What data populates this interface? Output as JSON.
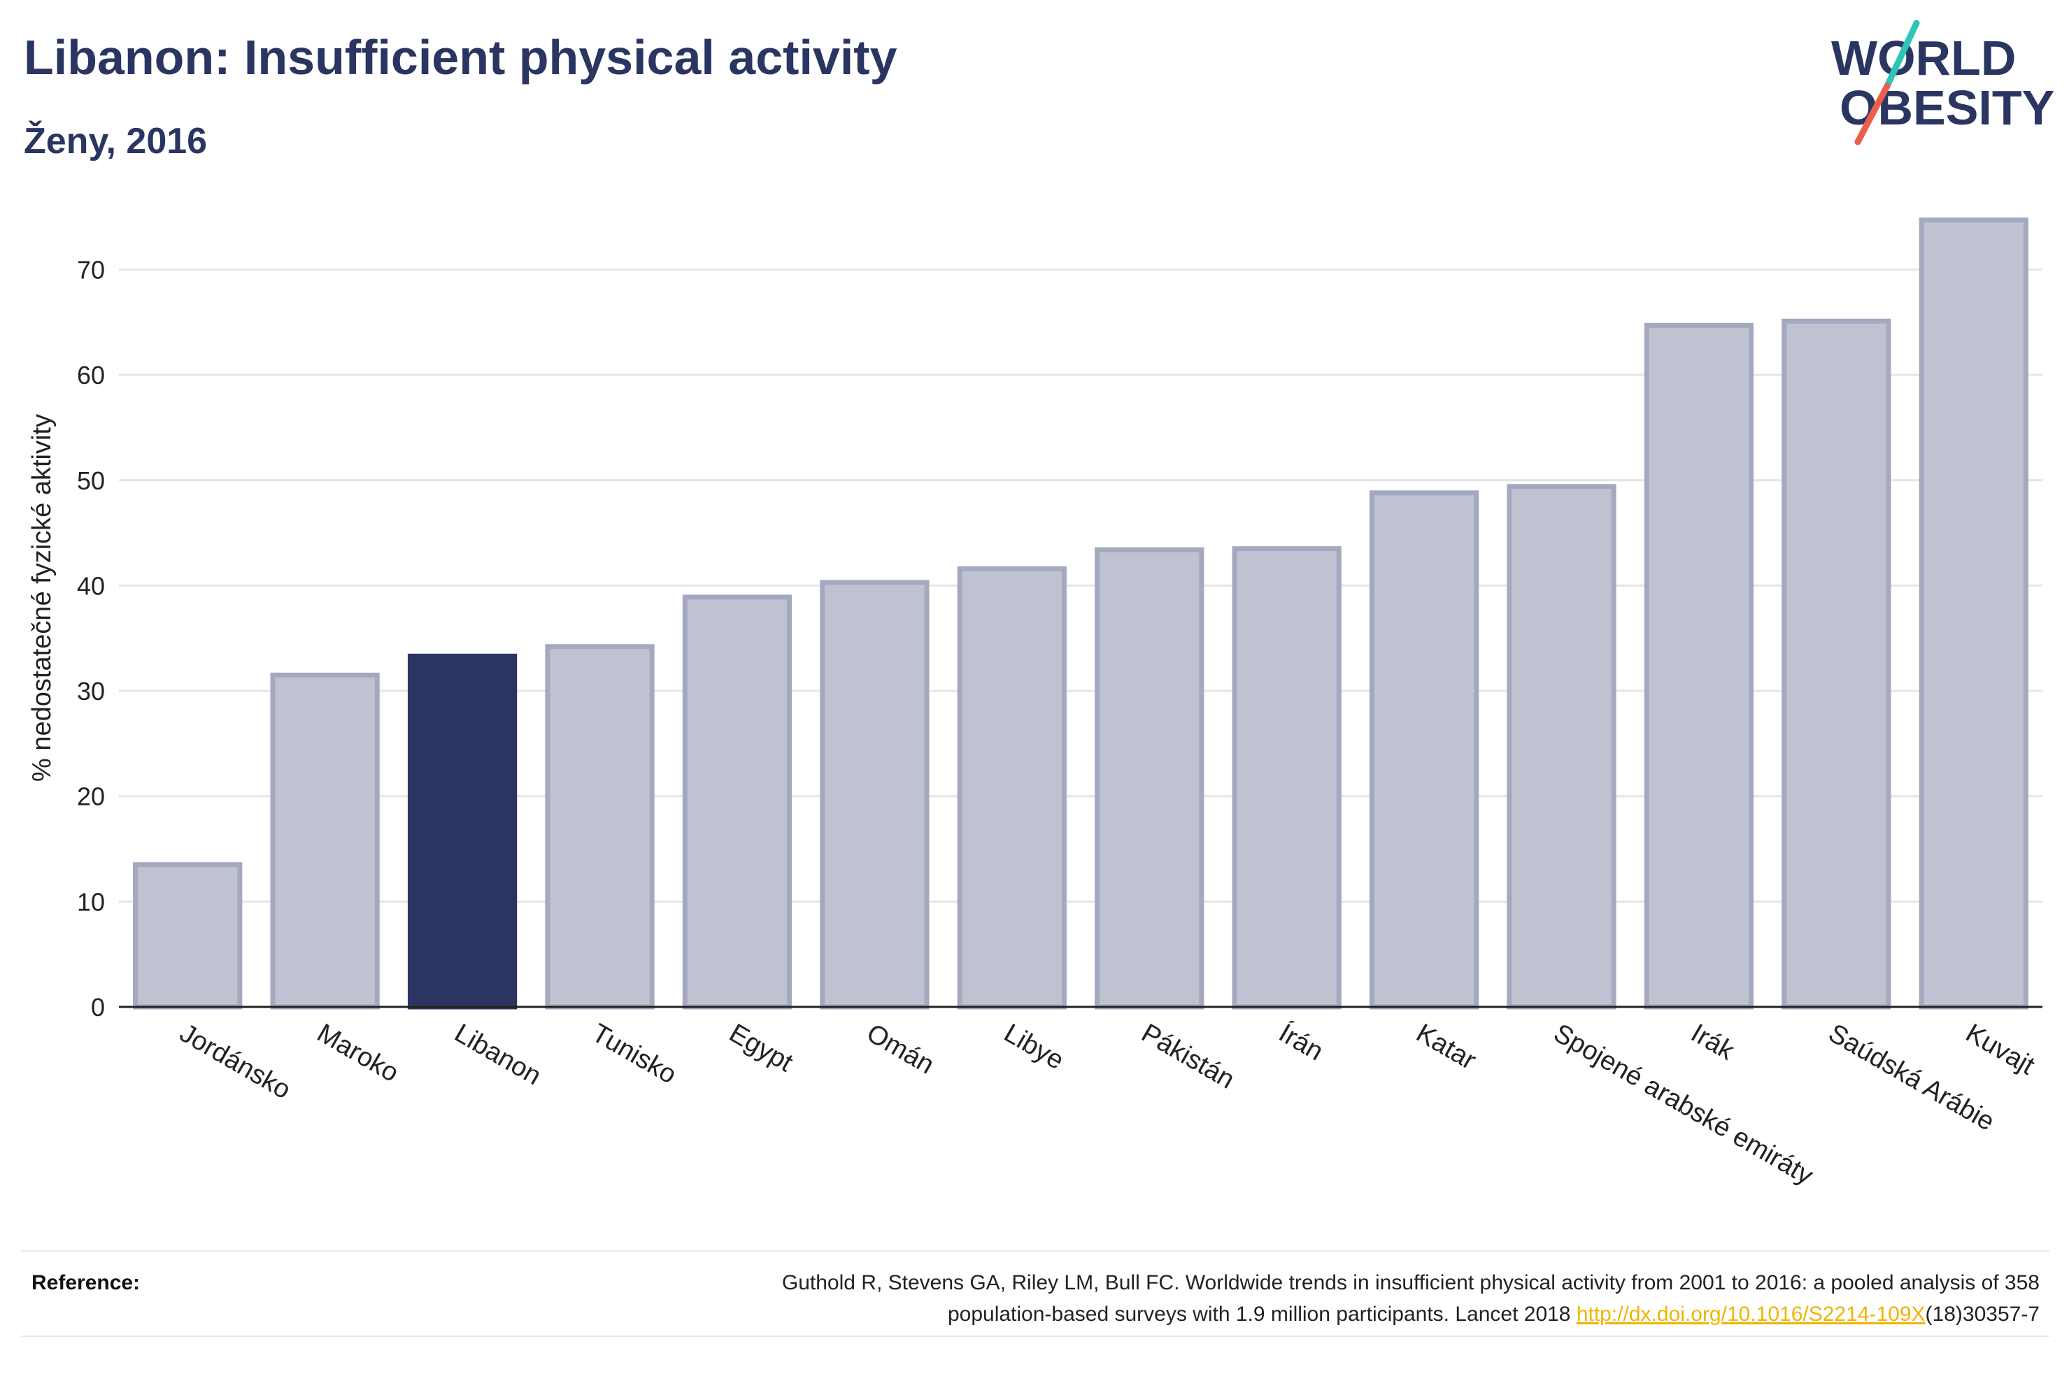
{
  "header": {
    "title": "Libanon: Insufficient physical activity",
    "subtitle": "Ženy, 2016"
  },
  "logo": {
    "line1": "WORLD",
    "line2": "OBESITY",
    "colors": {
      "text": "#2b3561",
      "slash_top": "#2ec4b6",
      "slash_bottom": "#e8604c"
    }
  },
  "chart_data": {
    "type": "bar",
    "ylabel": "% nedostatečné fyzické aktivity",
    "ylim": [
      0,
      77
    ],
    "yticks": [
      0,
      10,
      20,
      30,
      40,
      50,
      60,
      70
    ],
    "grid": true,
    "highlight": "Libanon",
    "colors": {
      "bar": "#bfc3d1",
      "bar_border": "#a4a9bf",
      "highlight": "#2b3561",
      "grid": "#e6e6e6",
      "axis": "#222222"
    },
    "categories": [
      "Jordánsko",
      "Maroko",
      "Libanon",
      "Tunisko",
      "Egypt",
      "Omán",
      "Libye",
      "Pákistán",
      "Írán",
      "Katar",
      "Spojené arabské emiráty",
      "Irák",
      "Saúdská Arábie",
      "Kuvajt"
    ],
    "values": [
      13.5,
      31.5,
      33.3,
      34.2,
      38.9,
      40.3,
      41.6,
      43.4,
      43.5,
      48.8,
      49.4,
      64.7,
      65.1,
      74.7
    ]
  },
  "reference": {
    "label": "Reference:",
    "text_line1": "Guthold R, Stevens GA, Riley LM, Bull FC. Worldwide trends in insufficient physical activity from 2001 to 2016: a pooled analysis of 358",
    "text_line2_pre": "population-based surveys with 1.9 million participants. Lancet 2018 ",
    "link_text": "http://dx.doi.org/10.1016/S2214-109X",
    "text_line2_post": "(18)30357-7",
    "link_color": "#f0b400"
  }
}
